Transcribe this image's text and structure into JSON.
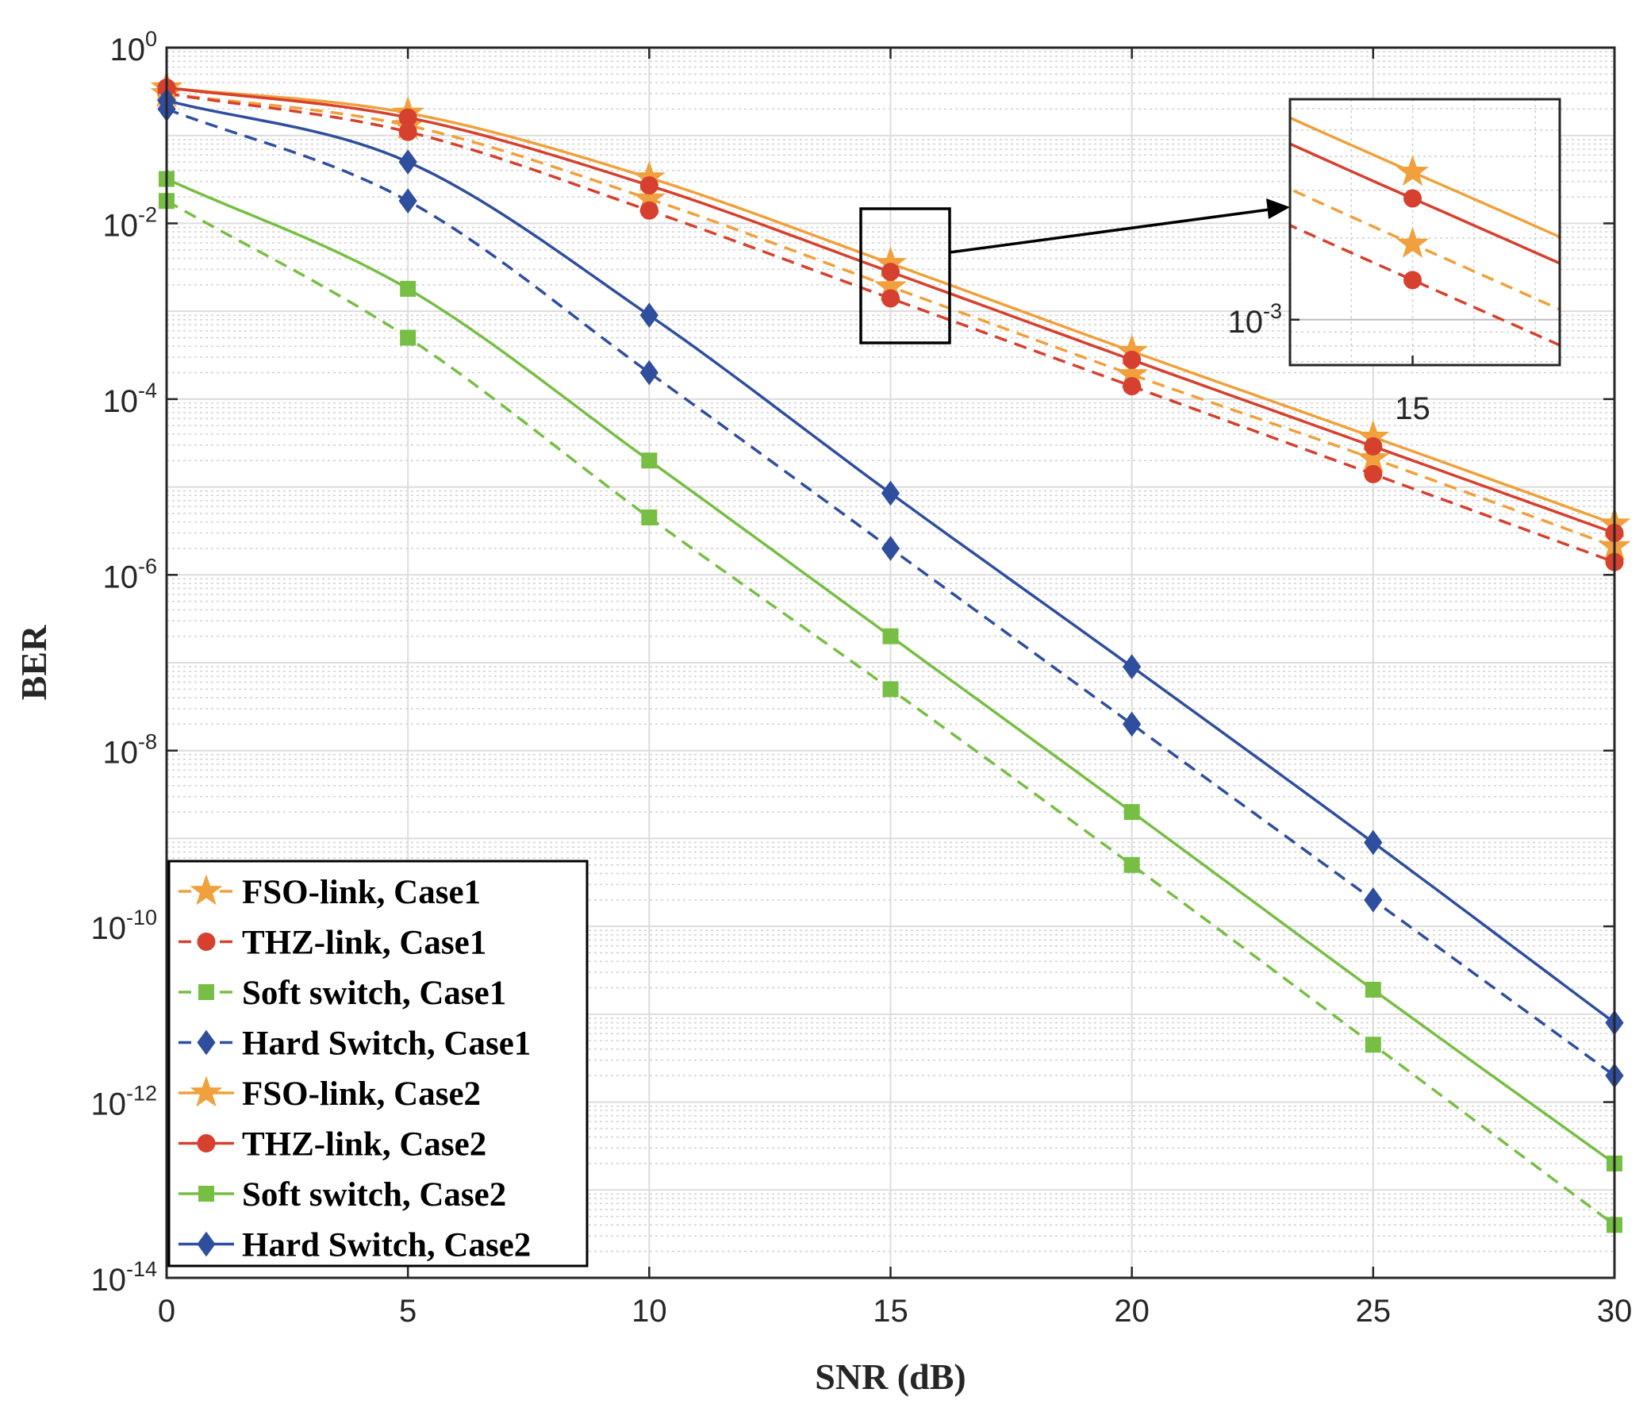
{
  "chart_data": {
    "type": "line",
    "xlabel": "SNR (dB)",
    "ylabel": "BER",
    "xlim": [
      0,
      30
    ],
    "ylim": [
      1e-14,
      1
    ],
    "yscale": "log",
    "grid": true,
    "minor_grid": true,
    "legend_position": "bottom-left",
    "x_ticks": [
      {
        "value": 0,
        "label": "0"
      },
      {
        "value": 5,
        "label": "5"
      },
      {
        "value": 10,
        "label": "10"
      },
      {
        "value": 15,
        "label": "15"
      },
      {
        "value": 20,
        "label": "20"
      },
      {
        "value": 25,
        "label": "25"
      },
      {
        "value": 30,
        "label": "30"
      }
    ],
    "y_ticks": [
      {
        "exp": 0,
        "base": "10",
        "sup": "0"
      },
      {
        "exp": -2,
        "base": "10",
        "sup": "-2"
      },
      {
        "exp": -4,
        "base": "10",
        "sup": "-4"
      },
      {
        "exp": -6,
        "base": "10",
        "sup": "-6"
      },
      {
        "exp": -8,
        "base": "10",
        "sup": "-8"
      },
      {
        "exp": -10,
        "base": "10",
        "sup": "-10"
      },
      {
        "exp": -12,
        "base": "10",
        "sup": "-12"
      },
      {
        "exp": -14,
        "base": "10",
        "sup": "-14"
      }
    ],
    "x": [
      0,
      5,
      10,
      15,
      20,
      25,
      30
    ],
    "series": [
      {
        "name": "FSO-link, Case1",
        "color": "#F0A03C",
        "dash": true,
        "marker": "star",
        "values": [
          0.3,
          0.13,
          0.019,
          0.0019,
          0.00019,
          2.1e-05,
          2.1e-06
        ]
      },
      {
        "name": "THZ-link, Case1",
        "color": "#D6402E",
        "dash": true,
        "marker": "circle",
        "values": [
          0.3,
          0.11,
          0.014,
          0.0014,
          0.00014,
          1.4e-05,
          1.4e-06
        ]
      },
      {
        "name": "Soft switch, Case1",
        "color": "#77BE45",
        "dash": true,
        "marker": "square",
        "values": [
          0.018,
          0.0005,
          4.5e-06,
          5e-08,
          5e-10,
          4.5e-12,
          4e-14
        ]
      },
      {
        "name": "Hard Switch, Case1",
        "color": "#2F4E9E",
        "dash": true,
        "marker": "diamond",
        "values": [
          0.2,
          0.018,
          0.0002,
          2e-06,
          2e-08,
          2e-10,
          2e-12
        ]
      },
      {
        "name": "FSO-link, Case2",
        "color": "#F0A03C",
        "dash": false,
        "marker": "star",
        "values": [
          0.35,
          0.18,
          0.033,
          0.0035,
          0.00035,
          3.7e-05,
          3.8e-06
        ]
      },
      {
        "name": "THZ-link, Case2",
        "color": "#D6402E",
        "dash": false,
        "marker": "circle",
        "values": [
          0.35,
          0.16,
          0.027,
          0.0028,
          0.00028,
          2.9e-05,
          3e-06
        ]
      },
      {
        "name": "Soft switch, Case2",
        "color": "#77BE45",
        "dash": false,
        "marker": "square",
        "values": [
          0.032,
          0.0018,
          2e-05,
          2e-07,
          2e-09,
          1.9e-11,
          2e-13
        ]
      },
      {
        "name": "Hard Switch, Case2",
        "color": "#2F4E9E",
        "dash": false,
        "marker": "diamond",
        "values": [
          0.25,
          0.05,
          0.0009,
          8.5e-06,
          9e-08,
          9e-10,
          8e-12
        ]
      }
    ],
    "inset": {
      "description": "zoom on SNR = 15 dB",
      "x_tick_label": "15",
      "y_tick": {
        "base": "10",
        "sup": "-3"
      },
      "series_shown": [
        "FSO-link, Case1",
        "THZ-link, Case1",
        "FSO-link, Case2",
        "THZ-link, Case2"
      ]
    }
  }
}
